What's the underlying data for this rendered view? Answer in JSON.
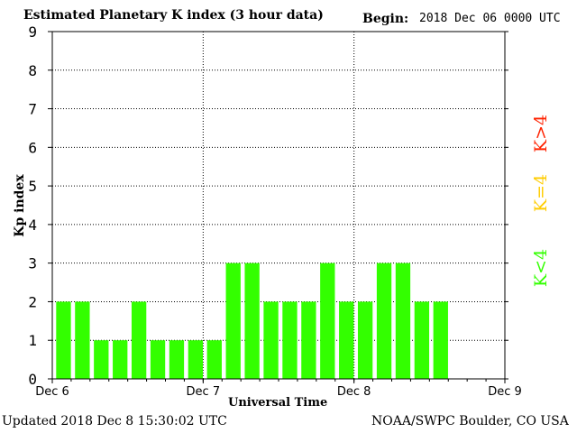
{
  "header": {
    "title": "Estimated Planetary K index (3 hour data)",
    "begin_label": "Begin:",
    "begin_value": "2018 Dec 06 0000 UTC"
  },
  "footer": {
    "updated": "Updated 2018 Dec  8 15:30:02 UTC",
    "source": "NOAA/SWPC Boulder, CO USA"
  },
  "legend": {
    "items": [
      {
        "label": "K<4",
        "color": "#33ff00"
      },
      {
        "label": "K=4",
        "color": "#ffcc00"
      },
      {
        "label": "K>4",
        "color": "#ff2200"
      }
    ]
  },
  "chart_data": {
    "type": "bar",
    "title": "Estimated Planetary K index (3 hour data)",
    "xlabel": "Universal Time",
    "ylabel": "Kp index",
    "ylim": [
      0,
      9
    ],
    "yticks": [
      0,
      1,
      2,
      3,
      4,
      5,
      6,
      7,
      8,
      9
    ],
    "xlim_days": [
      0,
      3
    ],
    "xticks": [
      "Dec 6",
      "Dec 7",
      "Dec 8",
      "Dec 9"
    ],
    "grid": true,
    "bar_color": "#33ff00",
    "interval_hours": 3,
    "values": [
      2,
      2,
      1,
      1,
      2,
      1,
      1,
      1,
      1,
      3,
      3,
      2,
      2,
      2,
      3,
      2,
      2,
      3,
      3,
      2,
      2
    ]
  }
}
